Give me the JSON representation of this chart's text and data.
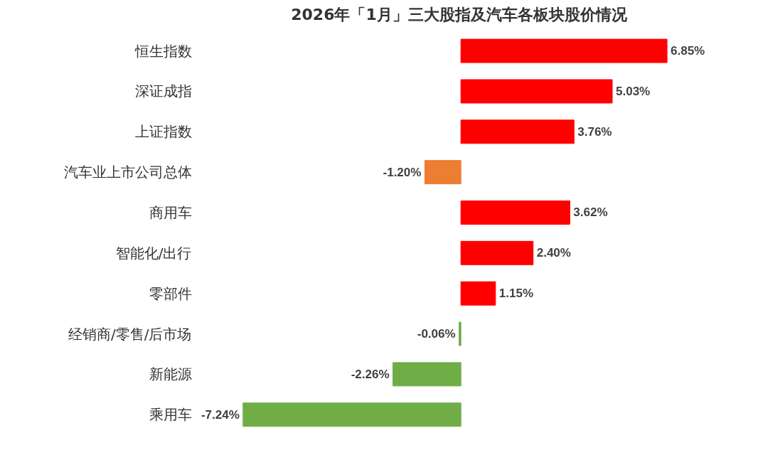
{
  "chart_data": {
    "type": "bar",
    "orientation": "horizontal",
    "title": "2026年「1月」三大股指及汽车各板块股价情况",
    "categories": [
      "恒生指数",
      "深证成指",
      "上证指数",
      "汽车业上市公司总体",
      "商用车",
      "智能化/出行",
      "零部件",
      "经销商/零售/后市场",
      "新能源",
      "乘用车"
    ],
    "values": [
      6.85,
      5.03,
      3.76,
      -1.2,
      3.62,
      2.4,
      1.15,
      -0.06,
      -2.26,
      -7.24
    ],
    "colors": [
      "#ff0000",
      "#ff0000",
      "#ff0000",
      "#ed7d31",
      "#ff0000",
      "#ff0000",
      "#ff0000",
      "#70ad47",
      "#70ad47",
      "#70ad47"
    ],
    "value_labels": [
      "6.85%",
      "5.03%",
      "3.76%",
      "-1.20%",
      "3.62%",
      "2.40%",
      "1.15%",
      "-0.06%",
      "-2.26%",
      "-7.24%"
    ],
    "grid": false
  }
}
